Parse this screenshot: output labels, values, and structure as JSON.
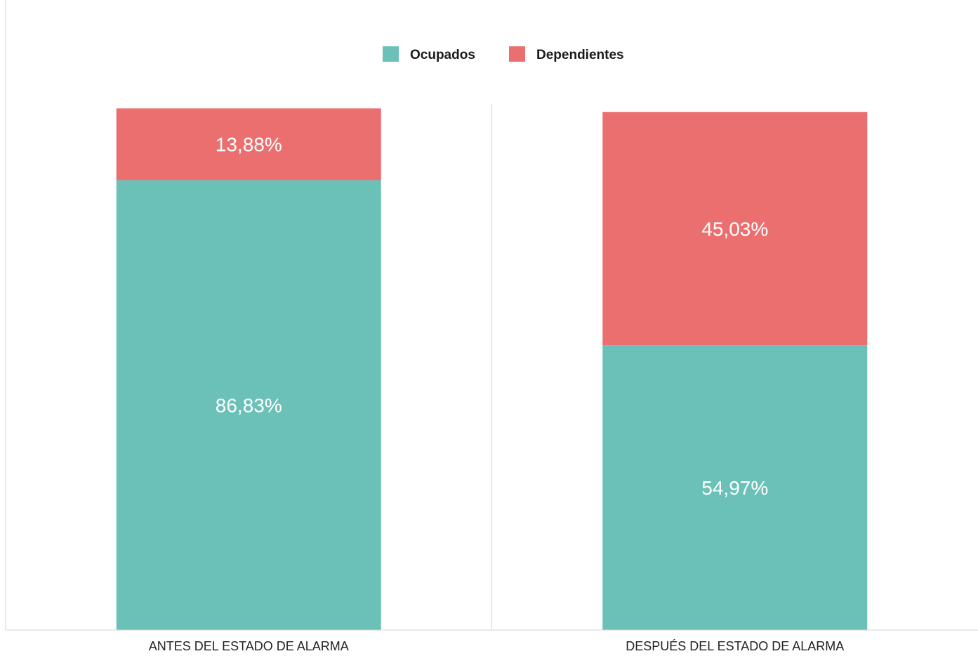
{
  "chart_data": {
    "type": "bar",
    "stacked": true,
    "title": "",
    "xlabel": "",
    "ylabel": "",
    "categories": [
      "ANTES DEL ESTADO DE ALARMA",
      "DESPUÉS DEL ESTADO DE ALARMA"
    ],
    "series": [
      {
        "name": "Ocupados",
        "color": "#6bc0b8",
        "values": [
          86.83,
          54.97
        ],
        "labels": [
          "86,83%",
          "54,97%"
        ]
      },
      {
        "name": "Dependientes",
        "color": "#eb6f6f",
        "values": [
          13.88,
          45.03
        ],
        "labels": [
          "13,88%",
          "45,03%"
        ]
      }
    ],
    "ylim": [
      0,
      107
    ],
    "grid": false,
    "legend_position": "top-center",
    "axis_line_color": "#d6d6d6"
  }
}
